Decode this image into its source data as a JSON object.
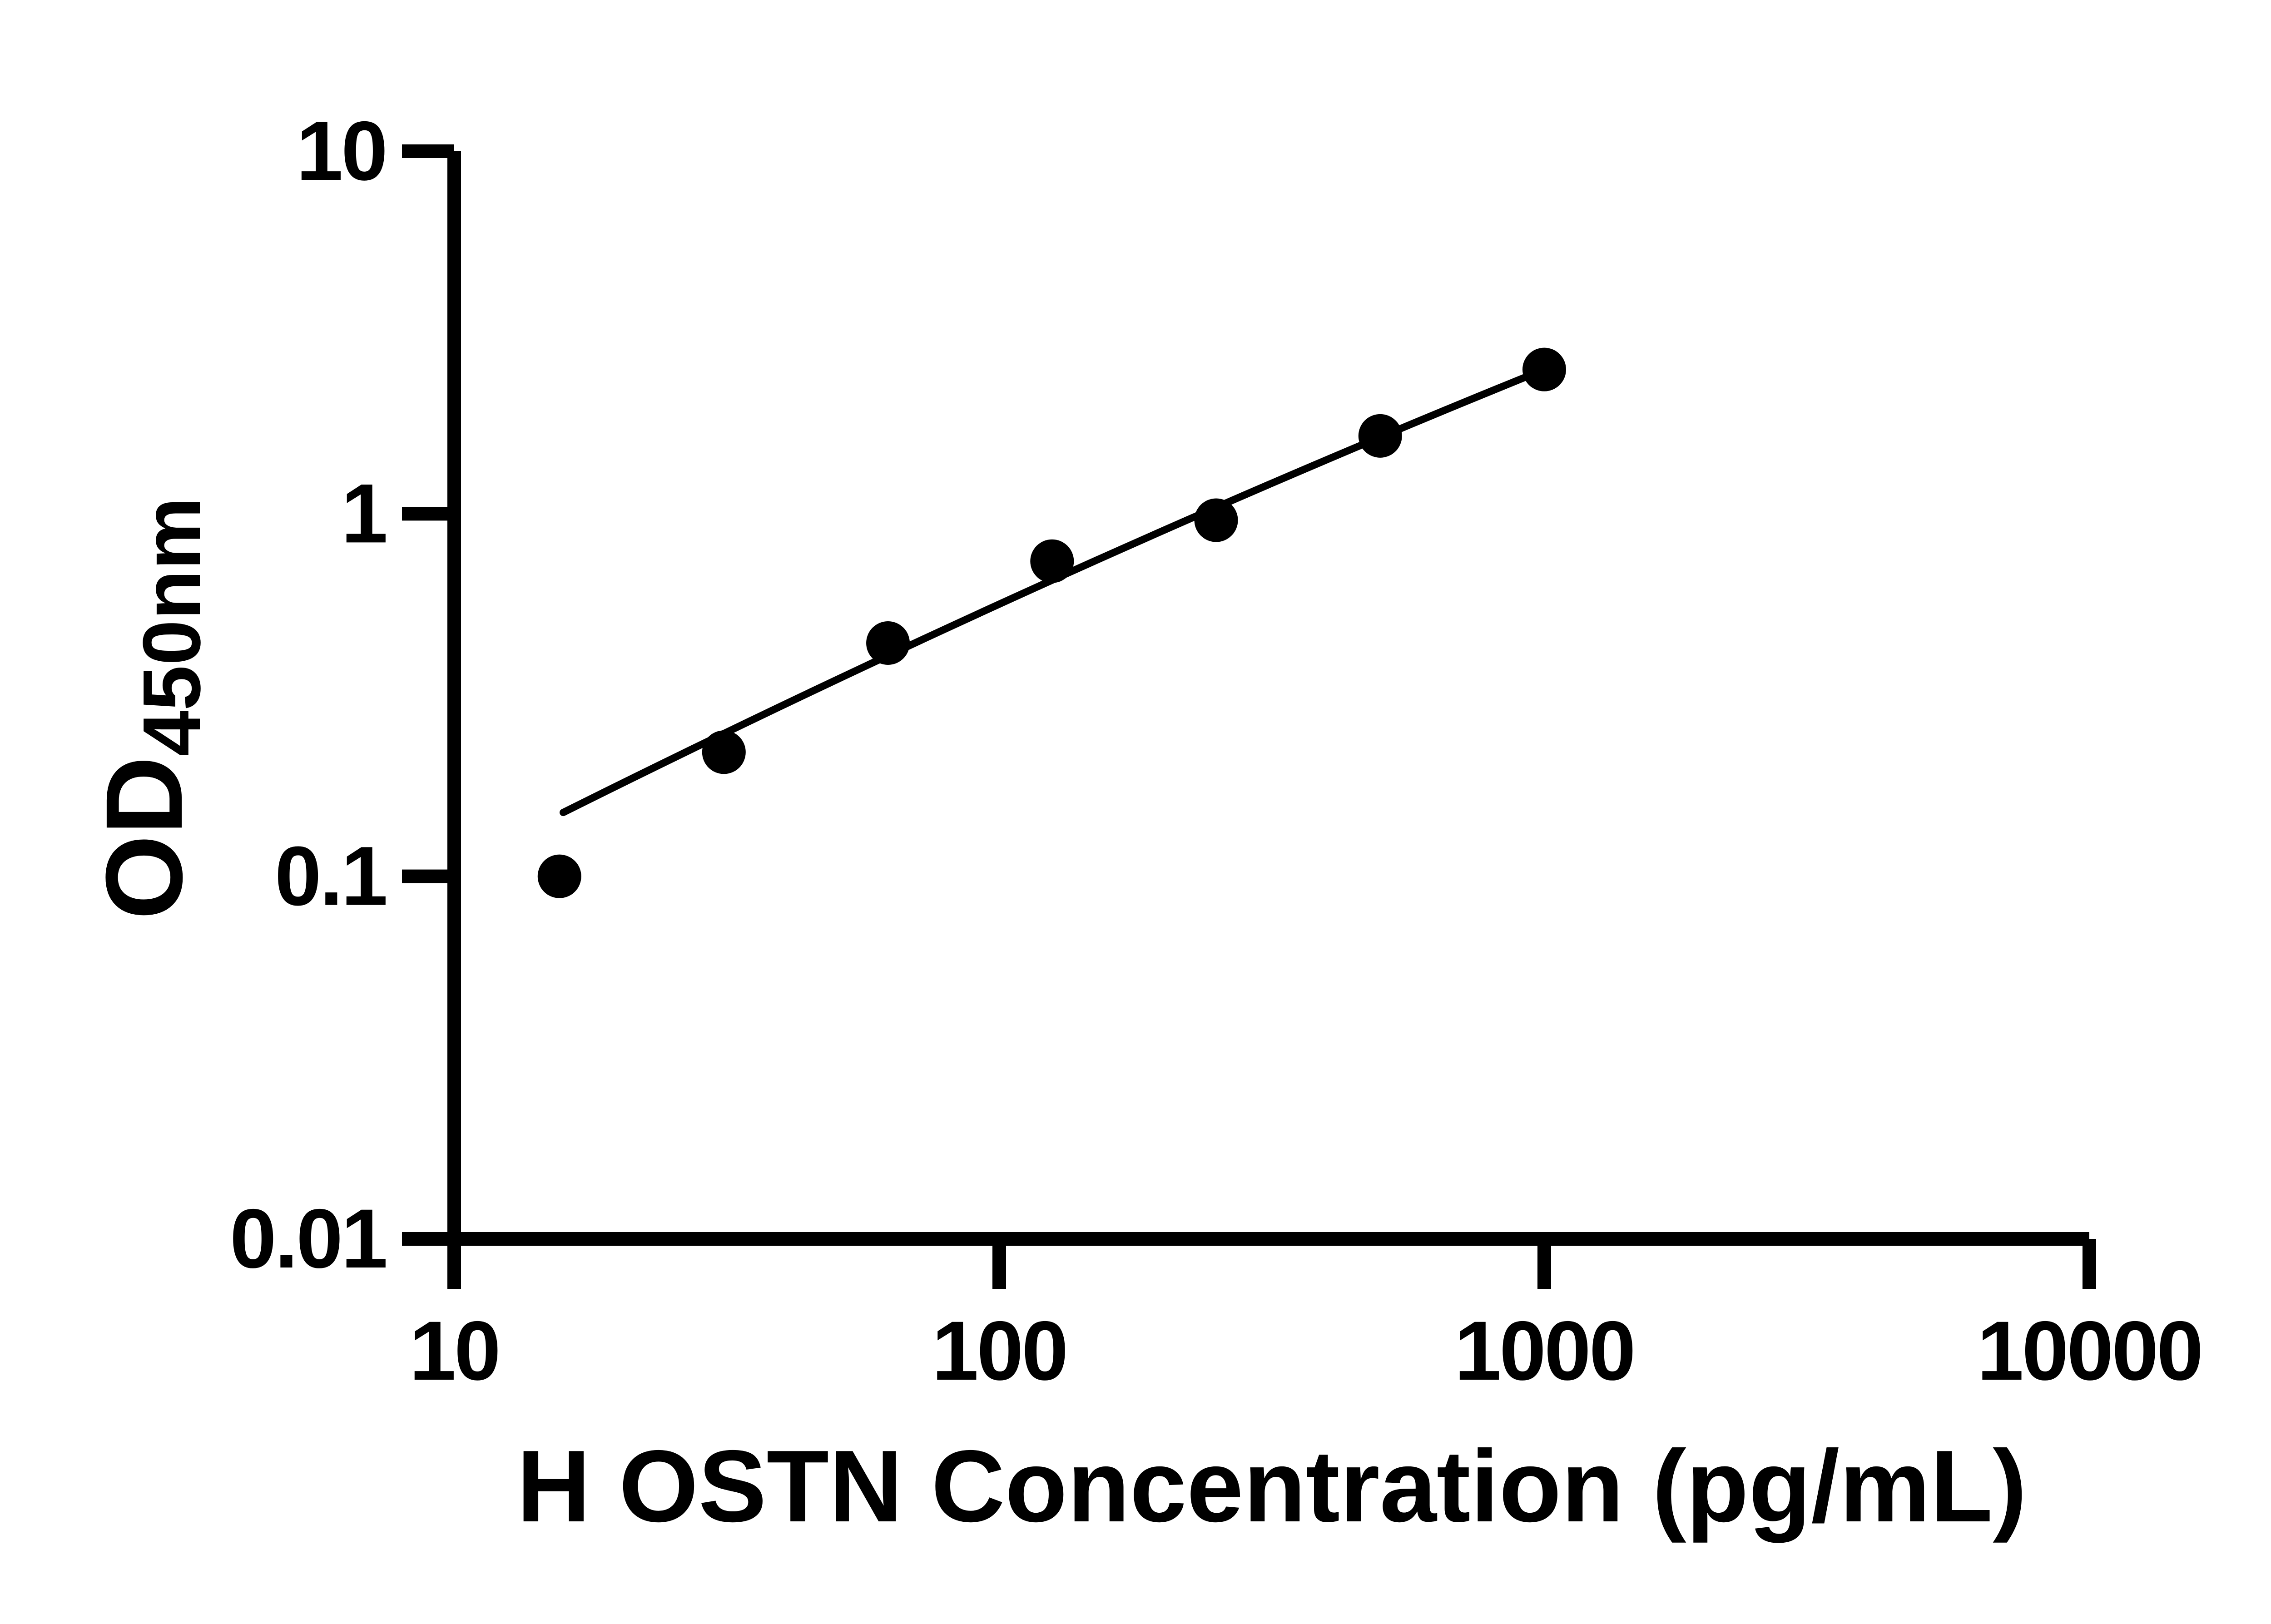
{
  "figure": {
    "description_label": "ELISA standard curve figure"
  },
  "chart_data": {
    "type": "scatter",
    "title": "",
    "xlabel": "H OSTN Concentration (pg/mL)",
    "ylabel_main": "OD",
    "ylabel_sub": "450nm",
    "x_scale": "log",
    "y_scale": "log",
    "xlim": [
      10,
      10000
    ],
    "ylim": [
      0.01,
      10
    ],
    "grid": false,
    "legend_position": "none",
    "x_ticks": [
      {
        "value": 10,
        "label": "10"
      },
      {
        "value": 100,
        "label": "100"
      },
      {
        "value": 1000,
        "label": "1000"
      },
      {
        "value": 10000,
        "label": "10000"
      }
    ],
    "y_ticks": [
      {
        "value": 10,
        "label": "10"
      },
      {
        "value": 1,
        "label": "1"
      },
      {
        "value": 0.1,
        "label": "0.1"
      },
      {
        "value": 0.01,
        "label": "0.01"
      }
    ],
    "series": [
      {
        "name": "standard-points",
        "marker": "filled-circle",
        "points": [
          {
            "x": 15.6,
            "y": 0.1
          },
          {
            "x": 31.25,
            "y": 0.22
          },
          {
            "x": 62.5,
            "y": 0.44
          },
          {
            "x": 125,
            "y": 0.74
          },
          {
            "x": 250,
            "y": 0.96
          },
          {
            "x": 500,
            "y": 1.64
          },
          {
            "x": 1000,
            "y": 2.5
          }
        ]
      }
    ],
    "trend_line": {
      "start": {
        "x": 15.85,
        "y": 0.15
      },
      "control": {
        "x": 126,
        "y": 0.71
      },
      "end": {
        "x": 1000,
        "y": 2.5
      }
    },
    "colors": {
      "ink": "#000000",
      "background": "#ffffff"
    }
  }
}
